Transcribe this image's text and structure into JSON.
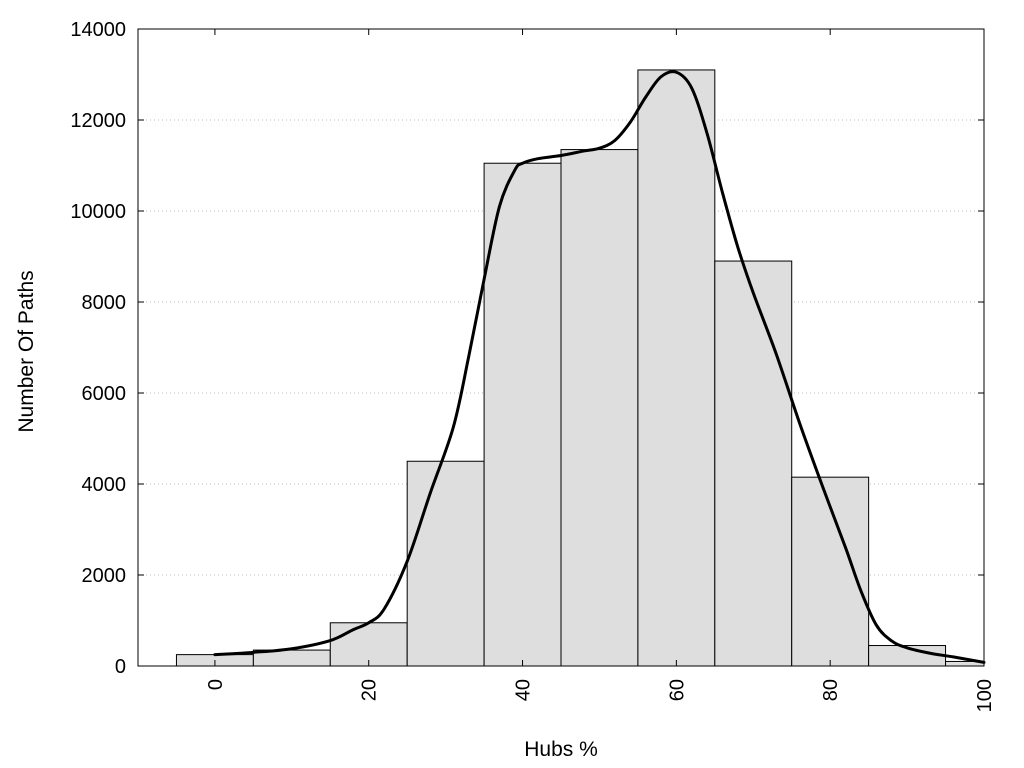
{
  "chart_data": {
    "type": "bar",
    "title": "",
    "xlabel": "Hubs %",
    "ylabel": "Number Of Paths",
    "xlim": [
      -10,
      100
    ],
    "ylim": [
      0,
      14000
    ],
    "xticks": [
      0,
      20,
      40,
      60,
      80,
      100
    ],
    "yticks": [
      0,
      2000,
      4000,
      6000,
      8000,
      10000,
      12000,
      14000
    ],
    "grid": "horizontal-dotted",
    "legend": "none",
    "bars": [
      {
        "x0": -5,
        "x1": 5,
        "value": 250
      },
      {
        "x0": 5,
        "x1": 15,
        "value": 350
      },
      {
        "x0": 15,
        "x1": 25,
        "value": 950
      },
      {
        "x0": 25,
        "x1": 35,
        "value": 4500
      },
      {
        "x0": 35,
        "x1": 45,
        "value": 11050
      },
      {
        "x0": 45,
        "x1": 55,
        "value": 11350
      },
      {
        "x0": 55,
        "x1": 65,
        "value": 13100
      },
      {
        "x0": 65,
        "x1": 75,
        "value": 8900
      },
      {
        "x0": 75,
        "x1": 85,
        "value": 4150
      },
      {
        "x0": 85,
        "x1": 95,
        "value": 450
      },
      {
        "x0": 95,
        "x1": 100,
        "value": 100
      }
    ],
    "curve": {
      "x": [
        0,
        5,
        10,
        15,
        18,
        20,
        22,
        25,
        28,
        31,
        33,
        35,
        37,
        39,
        40,
        42,
        45,
        48,
        50,
        52,
        54,
        56,
        58,
        60,
        62,
        64,
        66,
        68,
        70,
        73,
        76,
        79,
        82,
        84,
        86,
        88,
        90,
        93,
        96,
        100
      ],
      "y": [
        250,
        300,
        380,
        560,
        800,
        950,
        1250,
        2300,
        3800,
        5250,
        6800,
        8500,
        10100,
        10900,
        11050,
        11150,
        11220,
        11320,
        11380,
        11550,
        11950,
        12500,
        12950,
        13050,
        12700,
        11700,
        10400,
        9200,
        8200,
        6850,
        5350,
        3950,
        2600,
        1650,
        900,
        550,
        400,
        280,
        200,
        80
      ]
    },
    "colors": {
      "bar_fill": "#dedede",
      "bar_stroke": "#000000",
      "curve": "#000000",
      "grid": "#bbbbbb"
    }
  }
}
